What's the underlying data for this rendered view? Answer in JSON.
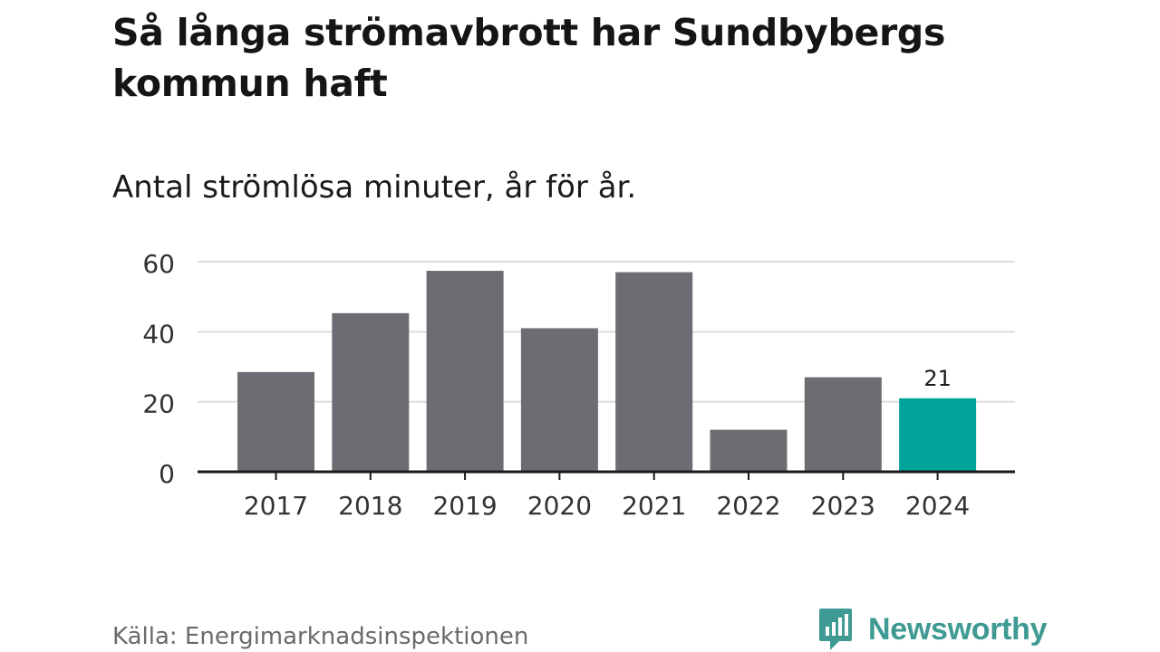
{
  "header": {
    "title": "Så långa strömavbrott har Sundbybergs kommun haft",
    "subtitle": "Antal strömlösa minuter, år för år."
  },
  "footer": {
    "source": "Källa: Energimarknadsinspektionen",
    "brand": "Newsworthy"
  },
  "icons": {
    "brand_logo": "newsworthy-logo-icon"
  },
  "colors": {
    "bar_default": "#6d6c72",
    "bar_highlight": "#00a399",
    "gridline": "#dcdcdc",
    "axis": "#1a1a1a",
    "brand": "#3e9a93"
  },
  "chart_data": {
    "type": "bar",
    "title": "Så långa strömavbrott har Sundbybergs kommun haft",
    "subtitle": "Antal strömlösa minuter, år för år.",
    "categories": [
      "2017",
      "2018",
      "2019",
      "2020",
      "2021",
      "2022",
      "2023",
      "2024"
    ],
    "values": [
      28.5,
      45.3,
      57.4,
      41,
      57,
      12,
      27,
      21
    ],
    "highlight_index": 7,
    "data_labels": [
      {
        "index": 7,
        "text": "21"
      }
    ],
    "xlabel": "",
    "ylabel": "",
    "ylim": [
      0,
      60
    ],
    "yticks": [
      0,
      20,
      40,
      60
    ],
    "grid": true,
    "legend": "none"
  }
}
